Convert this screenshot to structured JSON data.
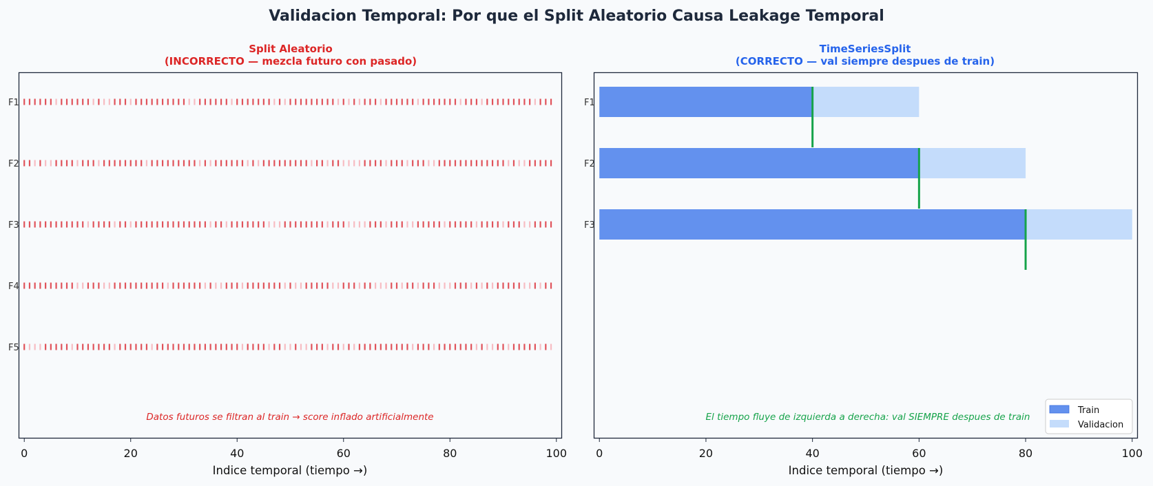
{
  "figure_title": "Validacion Temporal: Por que el Split Aleatorio Causa Leakage Temporal",
  "colors": {
    "background": "#f8fafc",
    "title": "#1e293b",
    "left_title": "#dc2626",
    "right_title": "#2563eb",
    "train": "#6391ee",
    "validation": "#c4dcfb",
    "boundary": "#16a34a",
    "random_train": "#e0525a",
    "random_val": "#f7bcc2"
  },
  "chart_data": [
    {
      "type": "scatter",
      "title": "Split Aleatorio",
      "subtitle": "(INCORRECTO — mezcla futuro con pasado)",
      "xlabel": "Indice temporal (tiempo →)",
      "ylabel": "",
      "xlim": [
        -1,
        101
      ],
      "xticks": [
        "0",
        "20",
        "40",
        "60",
        "80",
        "100"
      ],
      "grid": false,
      "folds": [
        "F1",
        "F2",
        "F3",
        "F4",
        "F5"
      ],
      "x_indices": [
        0,
        99
      ],
      "annotation": "Datos futuros se filtran al train → score inflado artificialmente"
    },
    {
      "type": "bar",
      "orientation": "horizontal",
      "title": "TimeSeriesSplit",
      "subtitle": "(CORRECTO — val siempre despues de train)",
      "xlabel": "Indice temporal (tiempo →)",
      "ylabel": "",
      "xlim": [
        -1,
        101
      ],
      "xticks": [
        "0",
        "20",
        "40",
        "60",
        "80",
        "100"
      ],
      "grid": false,
      "folds": [
        "F1",
        "F2",
        "F3"
      ],
      "series": [
        {
          "name": "Train",
          "starts": [
            0,
            0,
            0
          ],
          "ends": [
            40,
            60,
            80
          ]
        },
        {
          "name": "Validacion",
          "starts": [
            40,
            60,
            80
          ],
          "ends": [
            60,
            80,
            100
          ]
        }
      ],
      "boundaries": [
        40,
        60,
        80
      ],
      "legend_position": "lower-right",
      "annotation": "El tiempo fluye de izquierda a derecha: val SIEMPRE despues de train"
    }
  ]
}
